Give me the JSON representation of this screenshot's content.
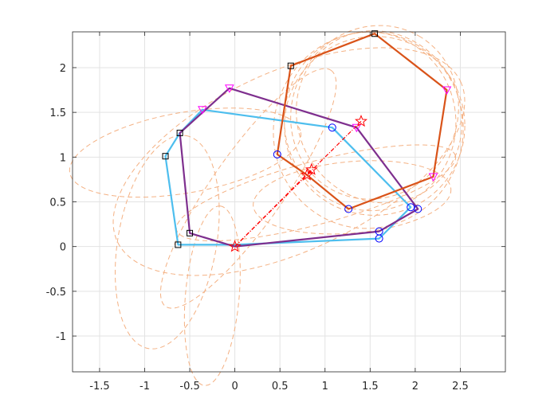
{
  "chart_data": {
    "type": "line",
    "title": "",
    "xlabel": "",
    "ylabel": "",
    "xlim": [
      -1.8,
      3.0
    ],
    "ylim": [
      -1.4,
      2.4
    ],
    "grid": true,
    "x_ticks": [
      -1.5,
      -1,
      -0.5,
      0,
      0.5,
      1,
      1.5,
      2,
      2.5
    ],
    "y_ticks": [
      -1,
      -0.5,
      0,
      0.5,
      1,
      1.5,
      2
    ],
    "x_tick_labels": [
      "-1.5",
      "-1",
      "-0.5",
      "0",
      "0.5",
      "1",
      "1.5",
      "2",
      "2.5"
    ],
    "y_tick_labels": [
      "-1",
      "-0.5",
      "0",
      "0.5",
      "1",
      "1.5",
      "2"
    ],
    "colors": {
      "blue_polygon": "#4DBEEE",
      "purple_polygon": "#7E2F8E",
      "orange_polygon": "#D95319",
      "orange_dashed": "#F4B183",
      "star_line": "#FF0000",
      "circle_marker": "#0000FF",
      "triangle_marker": "#FF00FF",
      "square_marker": "#000000"
    },
    "series": [
      {
        "style": "blue-solid",
        "points": [
          [
            0.0,
            0.02
          ],
          [
            -0.63,
            0.02
          ],
          [
            -0.77,
            1.01
          ],
          [
            -0.61,
            1.27
          ],
          [
            -0.36,
            1.53
          ],
          [
            1.08,
            1.33
          ],
          [
            1.95,
            0.44
          ],
          [
            1.6,
            0.09
          ],
          [
            0.0,
            0.02
          ]
        ]
      },
      {
        "style": "purple-solid",
        "points": [
          [
            0.0,
            0.0
          ],
          [
            -0.5,
            0.15
          ],
          [
            -0.61,
            1.27
          ],
          [
            -0.06,
            1.77
          ],
          [
            1.35,
            1.33
          ],
          [
            2.03,
            0.42
          ],
          [
            1.6,
            0.17
          ],
          [
            0.0,
            0.0
          ]
        ]
      },
      {
        "style": "orange-solid",
        "points": [
          [
            0.8,
            0.8
          ],
          [
            0.47,
            1.03
          ],
          [
            0.62,
            2.02
          ],
          [
            1.55,
            2.38
          ],
          [
            2.35,
            1.75
          ],
          [
            2.2,
            0.78
          ],
          [
            1.26,
            0.42
          ],
          [
            0.8,
            0.8
          ]
        ]
      },
      {
        "style": "red-dashdot",
        "points": [
          [
            0.0,
            0.0
          ],
          [
            1.4,
            1.4
          ]
        ]
      },
      {
        "style": "red-dashdot",
        "points": [
          [
            0.0,
            0.0
          ],
          [
            0.85,
            0.86
          ]
        ]
      }
    ],
    "markers": {
      "squares": [
        [
          -0.63,
          0.02
        ],
        [
          -0.5,
          0.15
        ],
        [
          -0.77,
          1.01
        ],
        [
          -0.61,
          1.27
        ],
        [
          0.62,
          2.02
        ],
        [
          1.55,
          2.38
        ]
      ],
      "circles": [
        [
          0.47,
          1.03
        ],
        [
          1.08,
          1.33
        ],
        [
          1.26,
          0.42
        ],
        [
          1.6,
          0.09
        ],
        [
          1.6,
          0.17
        ],
        [
          1.95,
          0.44
        ],
        [
          2.03,
          0.42
        ]
      ],
      "triangles": [
        [
          -0.36,
          1.53
        ],
        [
          -0.06,
          1.77
        ],
        [
          1.35,
          1.33
        ],
        [
          2.35,
          1.75
        ],
        [
          2.2,
          0.78
        ]
      ],
      "stars": [
        [
          0.0,
          0.0
        ],
        [
          1.4,
          1.4
        ],
        [
          0.85,
          0.86
        ],
        [
          0.8,
          0.8
        ]
      ]
    },
    "trace_curves": [
      {
        "type": "ellipse",
        "cx": 1.55,
        "cy": 1.35,
        "rx": 1.0,
        "ry": 1.0,
        "rot": 0
      },
      {
        "type": "ellipse",
        "cx": 1.5,
        "cy": 1.4,
        "rx": 0.95,
        "ry": 1.0,
        "rot": 10
      },
      {
        "type": "ellipse",
        "cx": 1.48,
        "cy": 1.3,
        "rx": 1.05,
        "ry": 1.1,
        "rot": -15
      },
      {
        "type": "ellipse",
        "cx": 1.6,
        "cy": 1.45,
        "rx": 0.9,
        "ry": 0.98,
        "rot": 30
      },
      {
        "type": "ellipse",
        "cx": 1.55,
        "cy": 1.5,
        "rx": 0.98,
        "ry": 0.92,
        "rot": 60
      },
      {
        "type": "ellipse",
        "cx": 0.6,
        "cy": 0.95,
        "rx": 2.1,
        "ry": 1.0,
        "rot": 25
      },
      {
        "type": "ellipse",
        "cx": -0.55,
        "cy": 1.05,
        "rx": 1.3,
        "ry": 0.45,
        "rot": 10
      },
      {
        "type": "ellipse",
        "cx": -0.75,
        "cy": 0.05,
        "rx": 1.2,
        "ry": 0.55,
        "rot": 80
      },
      {
        "type": "ellipse",
        "cx": -0.25,
        "cy": -0.55,
        "rx": 1.0,
        "ry": 0.3,
        "rot": 85
      },
      {
        "type": "ellipse",
        "cx": 0.15,
        "cy": 0.65,
        "rx": 1.6,
        "ry": 0.4,
        "rot": 55
      },
      {
        "type": "ellipse",
        "cx": 0.9,
        "cy": 0.6,
        "rx": 1.6,
        "ry": 0.35,
        "rot": 15
      },
      {
        "type": "ellipse",
        "cx": 1.3,
        "cy": 0.55,
        "rx": 1.1,
        "ry": 0.4,
        "rot": 5
      }
    ]
  }
}
